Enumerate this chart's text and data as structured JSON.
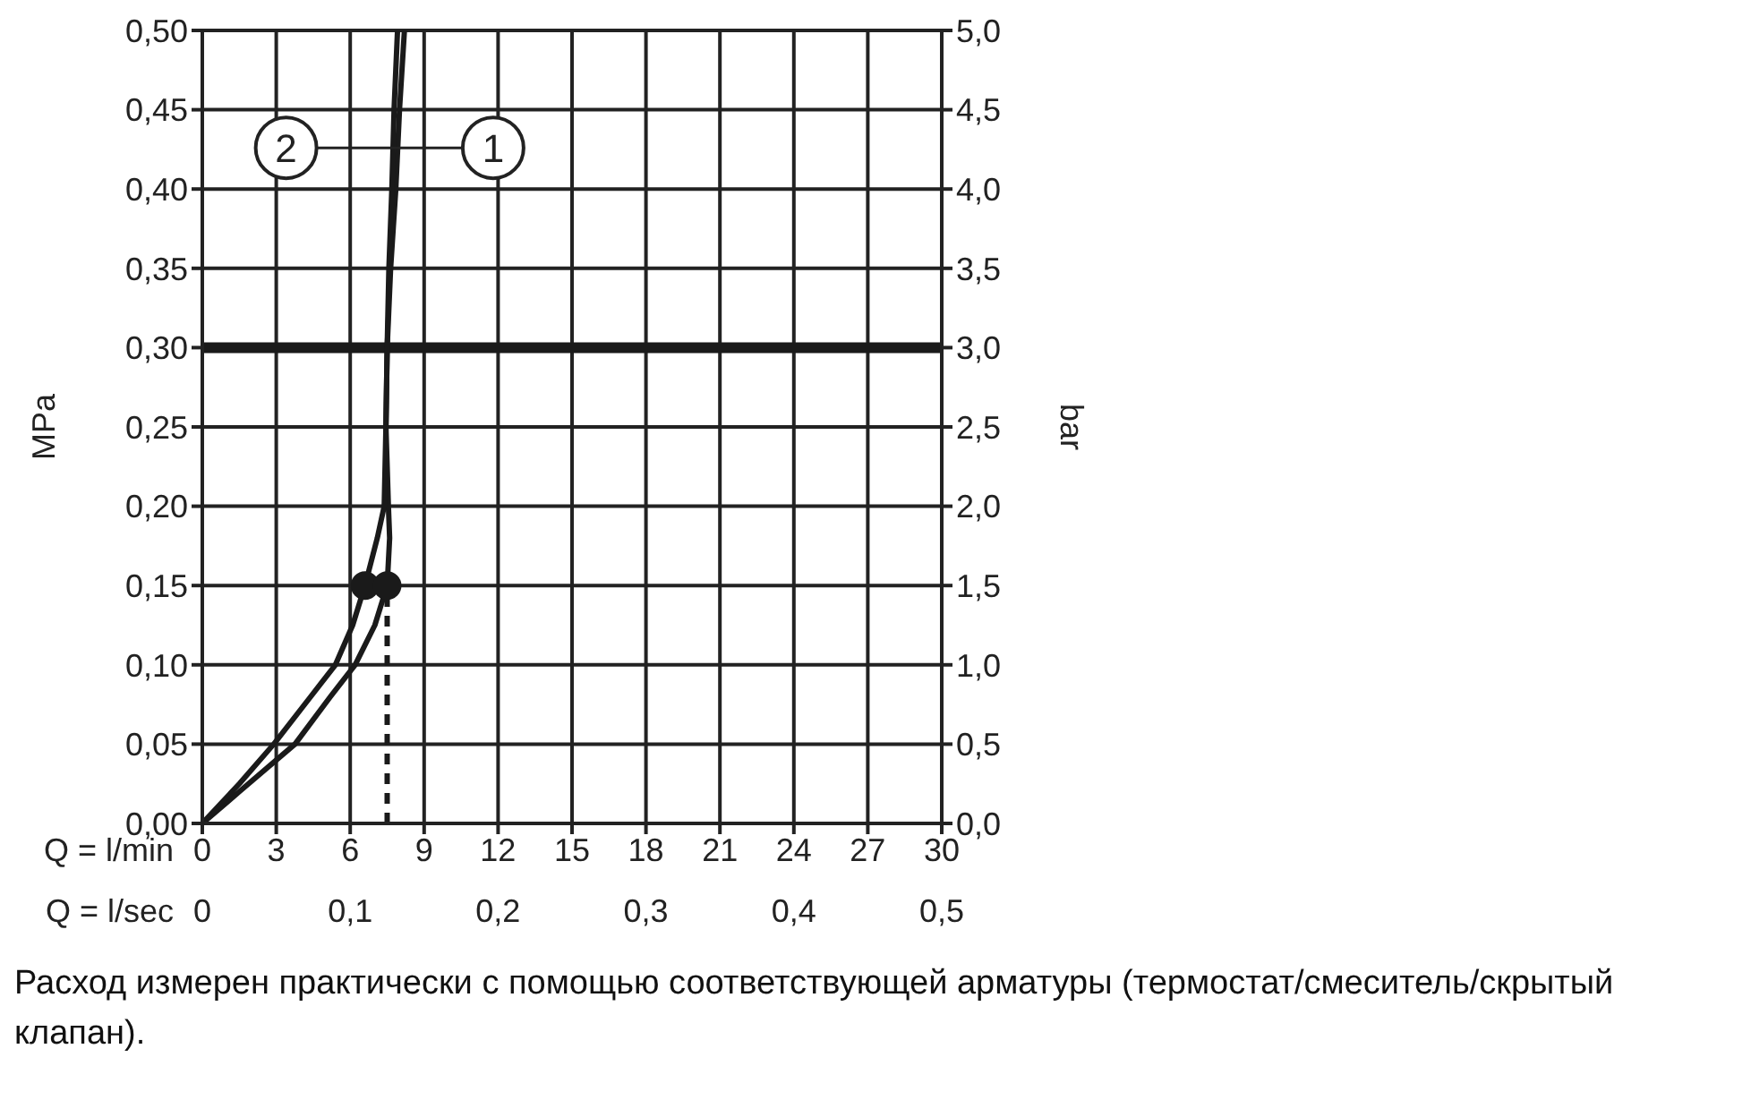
{
  "chart_data": {
    "type": "line",
    "ylabel": "MPa",
    "y2label": "bar",
    "xlabel": "Q = l/min",
    "x2label": "Q = l/sec",
    "xlim": [
      0,
      30
    ],
    "xticks": [
      0,
      3,
      6,
      9,
      12,
      15,
      18,
      21,
      24,
      27,
      30
    ],
    "x2lim": [
      0,
      0.5
    ],
    "x2ticks": [
      0,
      {
        "value": 0.1,
        "label": "0,1"
      },
      {
        "value": 0.2,
        "label": "0,2"
      },
      {
        "value": 0.3,
        "label": "0,3"
      },
      {
        "value": 0.4,
        "label": "0,4"
      },
      {
        "value": 0.5,
        "label": "0,5"
      }
    ],
    "ylim": [
      0,
      0.5
    ],
    "yticks": [
      {
        "value": 0,
        "label": "0,00"
      },
      {
        "value": 0.05,
        "label": "0,05"
      },
      {
        "value": 0.1,
        "label": "0,10"
      },
      {
        "value": 0.15,
        "label": "0,15"
      },
      {
        "value": 0.2,
        "label": "0,20"
      },
      {
        "value": 0.25,
        "label": "0,25"
      },
      {
        "value": 0.3,
        "label": "0,30"
      },
      {
        "value": 0.35,
        "label": "0,35"
      },
      {
        "value": 0.4,
        "label": "0,40"
      },
      {
        "value": 0.45,
        "label": "0,45"
      },
      {
        "value": 0.5,
        "label": "0,50"
      }
    ],
    "y2lim": [
      0,
      5
    ],
    "y2ticks": [
      {
        "value": 0,
        "label": "0,0"
      },
      {
        "value": 0.5,
        "label": "0,5"
      },
      {
        "value": 1,
        "label": "1,0"
      },
      {
        "value": 1.5,
        "label": "1,5"
      },
      {
        "value": 2,
        "label": "2,0"
      },
      {
        "value": 2.5,
        "label": "2,5"
      },
      {
        "value": 3,
        "label": "3,0"
      },
      {
        "value": 3.5,
        "label": "3,5"
      },
      {
        "value": 4,
        "label": "4,0"
      },
      {
        "value": 4.5,
        "label": "4,5"
      },
      {
        "value": 5,
        "label": "5,0"
      }
    ],
    "grid": true,
    "series": [
      {
        "type": "line",
        "color": "#1a1a1a",
        "line_style": "solid",
        "x": [
          0,
          1.5,
          3.76,
          5.2,
          6.2,
          7.0,
          7.5,
          7.6,
          7.55,
          7.45,
          7.5,
          7.64,
          7.85,
          8.0,
          8.2
        ],
        "values": [
          0,
          0.02,
          0.05,
          0.08,
          0.1,
          0.125,
          0.15,
          0.18,
          0.2,
          0.25,
          0.3,
          0.35,
          0.4,
          0.45,
          0.5
        ]
      },
      {
        "type": "line",
        "color": "#1a1a1a",
        "line_style": "solid",
        "x": [
          0,
          1.5,
          2.9,
          4.4,
          5.4,
          6.1,
          6.6,
          7.1,
          7.38,
          7.45,
          7.5,
          7.57,
          7.69,
          7.78,
          7.92
        ],
        "values": [
          0,
          0.025,
          0.05,
          0.08,
          0.1,
          0.125,
          0.15,
          0.18,
          0.2,
          0.25,
          0.3,
          0.35,
          0.4,
          0.45,
          0.5
        ]
      },
      {
        "type": "line",
        "color": "#1a1a1a",
        "line_style": "dashed",
        "x": [
          7.5,
          7.5
        ],
        "values": [
          0,
          0.15
        ]
      },
      {
        "type": "scatter",
        "color": "#1a1a1a",
        "marker": "circle",
        "x": [
          6.6,
          7.5
        ],
        "values": [
          0.15,
          0.15
        ]
      }
    ],
    "ref_lines": [
      {
        "axis": "y",
        "value": 0.3,
        "color": "#1a1a1a"
      }
    ],
    "annotations": [
      {
        "text": "2",
        "x": 3.4,
        "y": 0.426
      },
      {
        "text": "1",
        "x": 11.8,
        "y": 0.426
      },
      "Расход измерен практически с помощью соответствующей арматуры (термостат/смеситель/скрытый клапан)."
    ]
  }
}
